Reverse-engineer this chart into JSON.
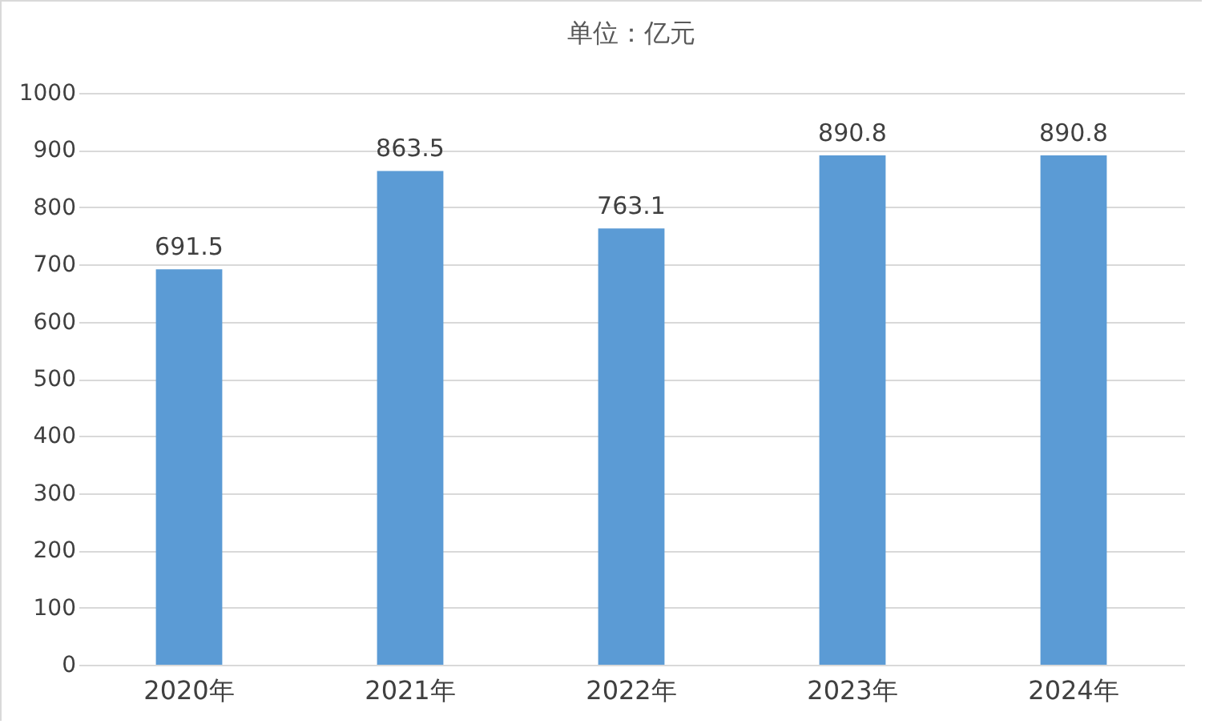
{
  "chart_data": {
    "type": "bar",
    "title": "单位：亿元",
    "categories": [
      "2020年",
      "2021年",
      "2022年",
      "2023年",
      "2024年"
    ],
    "values": [
      691.5,
      863.5,
      763.1,
      890.8,
      890.8
    ],
    "color": "#5b9bd5",
    "ylim": [
      0,
      1000
    ],
    "yticks": [
      0,
      100,
      200,
      300,
      400,
      500,
      600,
      700,
      800,
      900,
      1000
    ],
    "grid": "y",
    "data_labels": true
  }
}
